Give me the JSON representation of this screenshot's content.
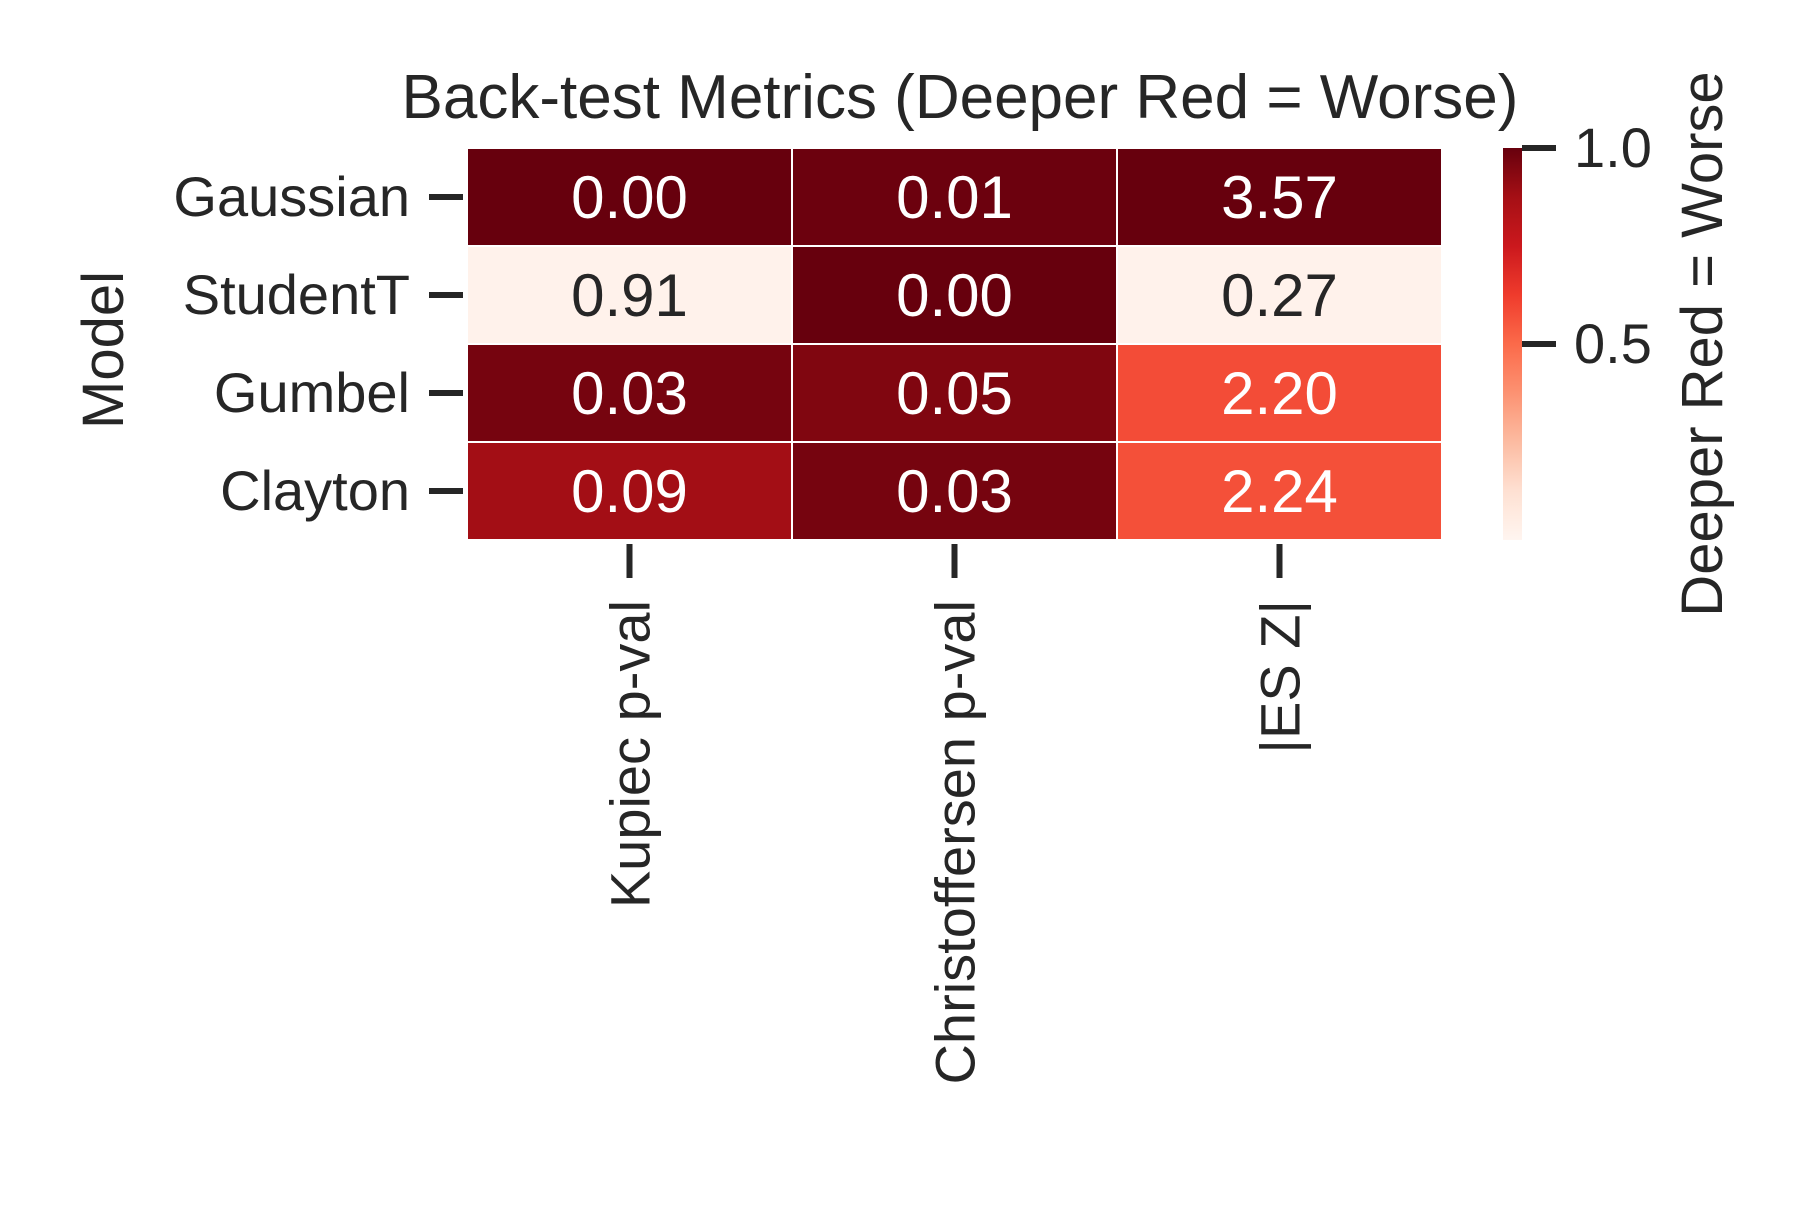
{
  "chart_data": {
    "type": "heatmap",
    "title": "Back-test Metrics (Deeper Red = Worse)",
    "xlabel": "",
    "ylabel": "Model",
    "rows": [
      "Gaussian",
      "StudentT",
      "Gumbel",
      "Clayton"
    ],
    "columns": [
      "Kupiec p-val",
      "Christoffersen p-val",
      "|ES Z|"
    ],
    "values": [
      [
        0.0,
        0.01,
        3.57
      ],
      [
        0.91,
        0.0,
        0.27
      ],
      [
        0.03,
        0.05,
        2.2
      ],
      [
        0.09,
        0.03,
        2.24
      ]
    ],
    "labels": [
      [
        "0.00",
        "0.01",
        "3.57"
      ],
      [
        "0.91",
        "0.00",
        "0.27"
      ],
      [
        "0.03",
        "0.05",
        "2.20"
      ],
      [
        "0.09",
        "0.03",
        "2.24"
      ]
    ],
    "color_intensity": [
      [
        1.0,
        0.99,
        1.0
      ],
      [
        0.02,
        1.0,
        0.02
      ],
      [
        0.97,
        0.95,
        0.58
      ],
      [
        0.88,
        0.97,
        0.57
      ]
    ],
    "colormap": "Reds",
    "colorbar": {
      "label": "Deeper Red = Worse",
      "ticks": [
        0.5,
        1.0
      ],
      "tick_labels": [
        "0.5",
        "1.0"
      ],
      "range": [
        0,
        1.0
      ]
    },
    "grid": false,
    "colors": {
      "low": "#fff5f0",
      "high": "#67000d",
      "cell_border": "#ffffff",
      "text_dark": "#262626",
      "text_light": "#ffffff"
    }
  }
}
